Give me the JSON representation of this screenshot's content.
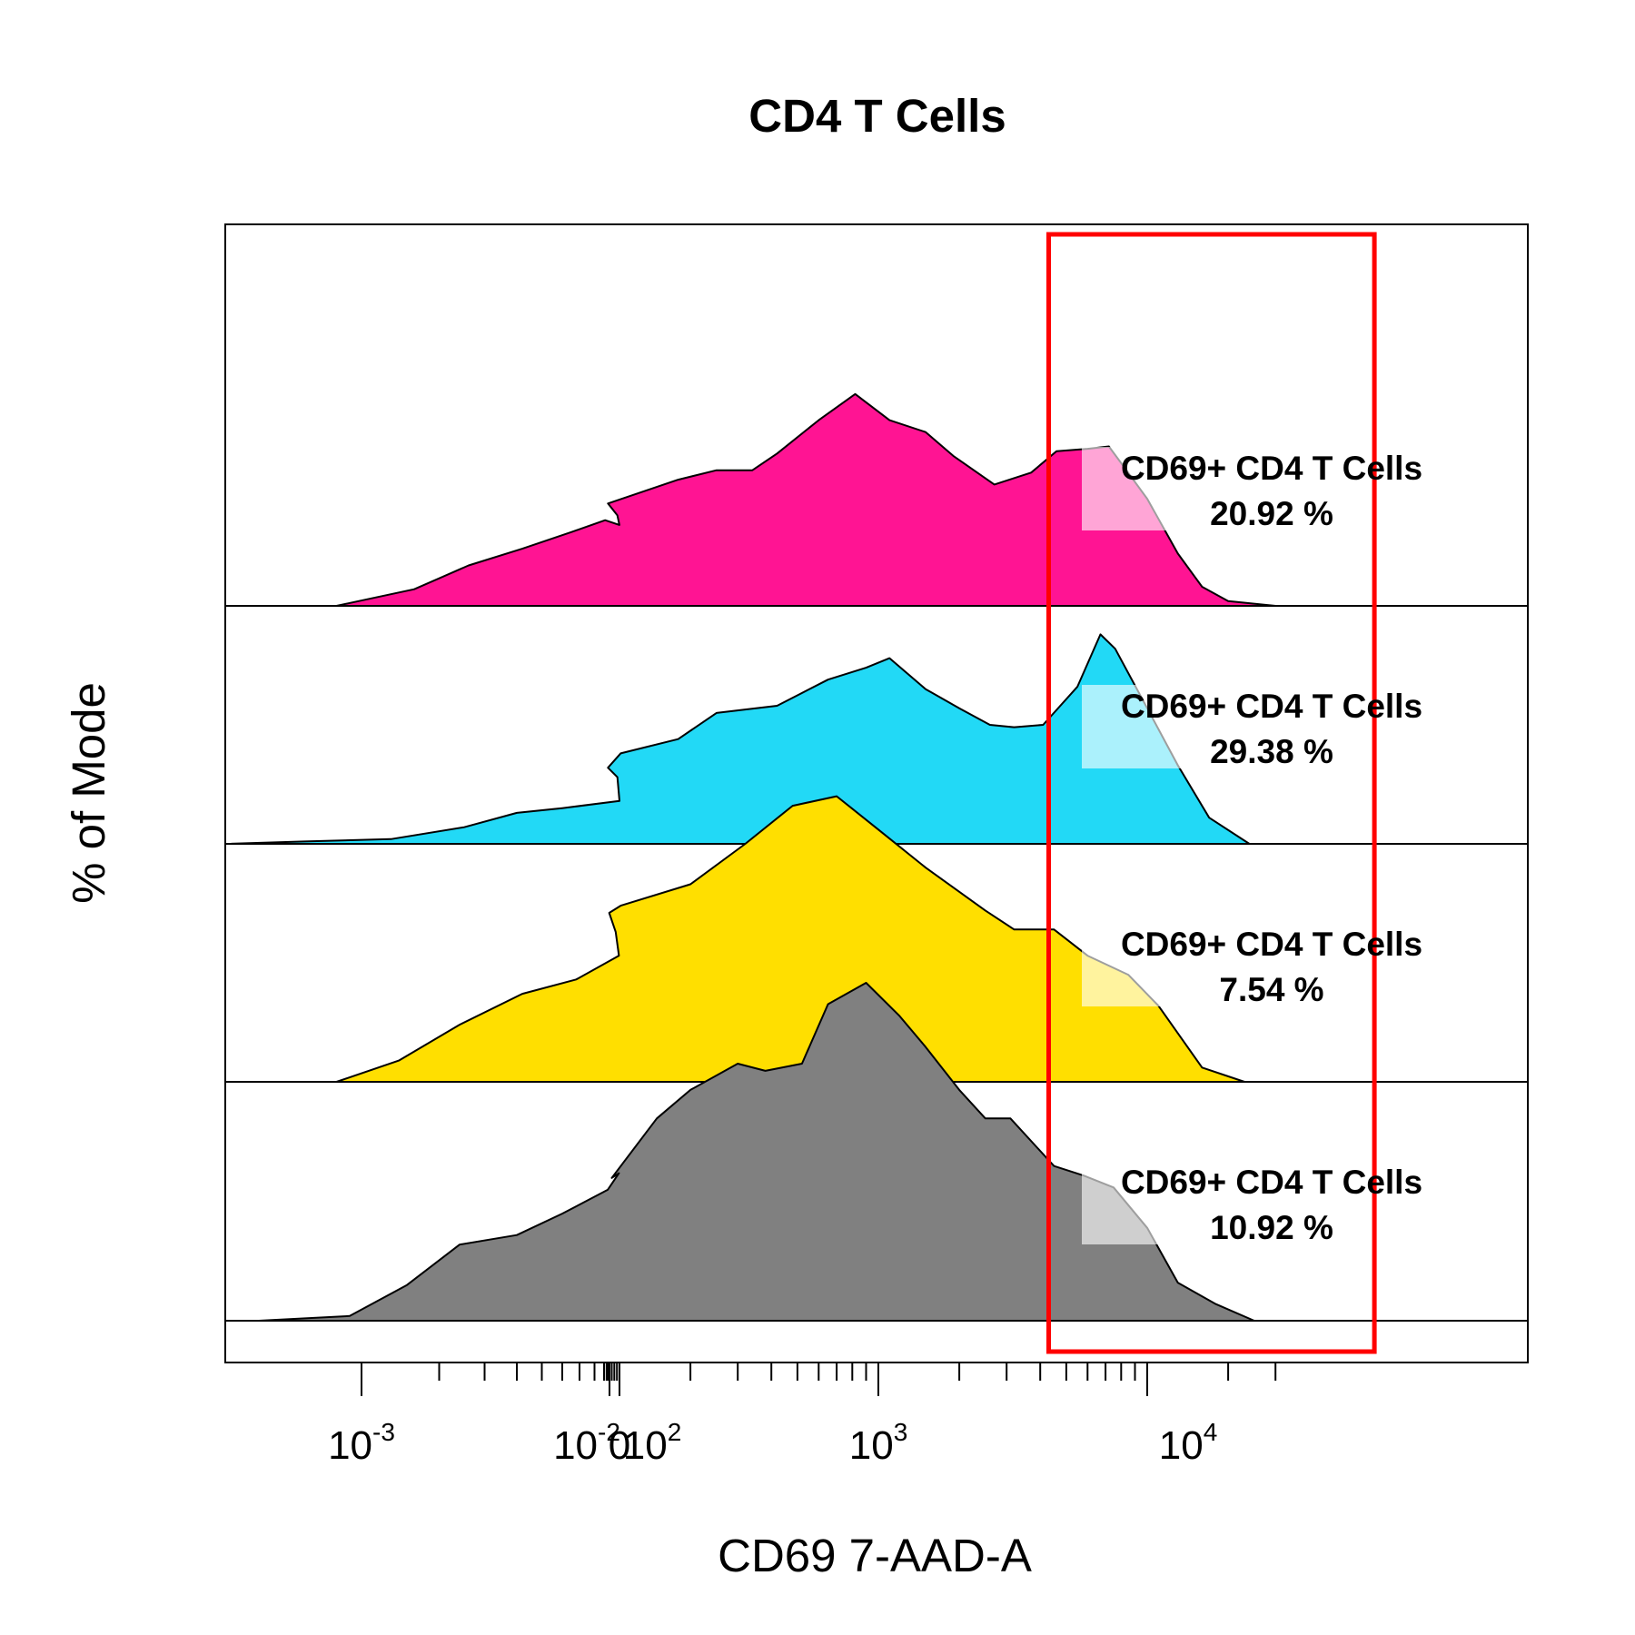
{
  "chart_data": {
    "type": "area",
    "title": "CD4 T Cells",
    "xlabel": "CD69 7-AAD-A",
    "ylabel": "% of Mode",
    "x_scale": "biexponential",
    "x_tick_labels": [
      {
        "base": "10",
        "exp": "-3"
      },
      {
        "base": "10",
        "exp": "-2"
      },
      {
        "base": "0",
        "exp": ""
      },
      {
        "base": "10",
        "exp": "2"
      },
      {
        "base": "10",
        "exp": "3"
      },
      {
        "base": "10",
        "exp": "4"
      }
    ],
    "gate": {
      "color": "#ff0000",
      "x_range": [
        4300,
        70000
      ]
    },
    "series": [
      {
        "color": "#ff1493",
        "gate_label": "CD69+ CD4 T Cells",
        "gate_percent": "20.92 %",
        "points": [
          [
            0.0008,
            0.0
          ],
          [
            0.0016,
            0.07
          ],
          [
            0.0026,
            0.17
          ],
          [
            0.0042,
            0.24
          ],
          [
            0.0065,
            0.31
          ],
          [
            0.0088,
            0.36
          ],
          [
            0.0105,
            0.34
          ],
          [
            0.018,
            0.38
          ],
          [
            0.055,
            0.43
          ],
          [
            180,
            0.53
          ],
          [
            250,
            0.57
          ],
          [
            340,
            0.57
          ],
          [
            420,
            0.64
          ],
          [
            600,
            0.78
          ],
          [
            820,
            0.89
          ],
          [
            1100,
            0.78
          ],
          [
            1500,
            0.73
          ],
          [
            1900,
            0.63
          ],
          [
            2700,
            0.51
          ],
          [
            3700,
            0.56
          ],
          [
            4600,
            0.65
          ],
          [
            6000,
            0.66
          ],
          [
            7200,
            0.67
          ],
          [
            8000,
            0.6
          ],
          [
            10000,
            0.45
          ],
          [
            13000,
            0.22
          ],
          [
            16000,
            0.08
          ],
          [
            20000,
            0.02
          ],
          [
            30000,
            0.0
          ]
        ]
      },
      {
        "color": "#22d9f6",
        "gate_label": "CD69+ CD4 T Cells",
        "gate_percent": "29.38 %",
        "points": [
          [
            0.0003,
            0.0
          ],
          [
            0.0006,
            0.01
          ],
          [
            0.0013,
            0.02
          ],
          [
            0.0025,
            0.07
          ],
          [
            0.004,
            0.13
          ],
          [
            0.006,
            0.15
          ],
          [
            0.01,
            0.18
          ],
          [
            0.018,
            0.28
          ],
          [
            0.055,
            0.32
          ],
          [
            110,
            0.38
          ],
          [
            180,
            0.44
          ],
          [
            250,
            0.55
          ],
          [
            420,
            0.58
          ],
          [
            650,
            0.69
          ],
          [
            900,
            0.74
          ],
          [
            1100,
            0.78
          ],
          [
            1500,
            0.65
          ],
          [
            2000,
            0.57
          ],
          [
            2600,
            0.5
          ],
          [
            3200,
            0.49
          ],
          [
            4100,
            0.5
          ],
          [
            5500,
            0.66
          ],
          [
            6700,
            0.88
          ],
          [
            7600,
            0.82
          ],
          [
            10000,
            0.57
          ],
          [
            13000,
            0.33
          ],
          [
            17000,
            0.11
          ],
          [
            24000,
            0.0
          ]
        ]
      },
      {
        "color": "#ffdf00",
        "gate_label": "CD69+ CD4 T Cells",
        "gate_percent": "7.54 %",
        "points": [
          [
            0.0008,
            0.0
          ],
          [
            0.0014,
            0.09
          ],
          [
            0.0024,
            0.24
          ],
          [
            0.0042,
            0.37
          ],
          [
            0.0068,
            0.43
          ],
          [
            0.012,
            0.53
          ],
          [
            0.025,
            0.63
          ],
          [
            0.05,
            0.71
          ],
          [
            110,
            0.74
          ],
          [
            200,
            0.83
          ],
          [
            320,
            1.0
          ],
          [
            480,
            1.16
          ],
          [
            700,
            1.2
          ],
          [
            1000,
            1.06
          ],
          [
            1500,
            0.9
          ],
          [
            2500,
            0.72
          ],
          [
            3200,
            0.64
          ],
          [
            4500,
            0.64
          ],
          [
            6000,
            0.53
          ],
          [
            8500,
            0.45
          ],
          [
            11000,
            0.32
          ],
          [
            16000,
            0.06
          ],
          [
            23000,
            0.0
          ]
        ]
      },
      {
        "color": "#808080",
        "gate_label": "CD69+ CD4 T Cells",
        "gate_percent": "10.92 %",
        "points": [
          [
            0.0004,
            0.0
          ],
          [
            0.0009,
            0.02
          ],
          [
            0.0015,
            0.15
          ],
          [
            0.0024,
            0.32
          ],
          [
            0.004,
            0.36
          ],
          [
            0.006,
            0.45
          ],
          [
            0.009,
            0.55
          ],
          [
            0.012,
            0.62
          ],
          [
            0.04,
            0.6
          ],
          [
            150,
            0.85
          ],
          [
            200,
            0.97
          ],
          [
            300,
            1.08
          ],
          [
            380,
            1.05
          ],
          [
            520,
            1.08
          ],
          [
            650,
            1.33
          ],
          [
            900,
            1.42
          ],
          [
            1200,
            1.28
          ],
          [
            1500,
            1.15
          ],
          [
            2000,
            0.97
          ],
          [
            2500,
            0.85
          ],
          [
            3100,
            0.85
          ],
          [
            4500,
            0.65
          ],
          [
            5800,
            0.61
          ],
          [
            7500,
            0.56
          ],
          [
            10000,
            0.39
          ],
          [
            13000,
            0.16
          ],
          [
            18000,
            0.07
          ],
          [
            25000,
            0.0
          ]
        ]
      }
    ]
  }
}
